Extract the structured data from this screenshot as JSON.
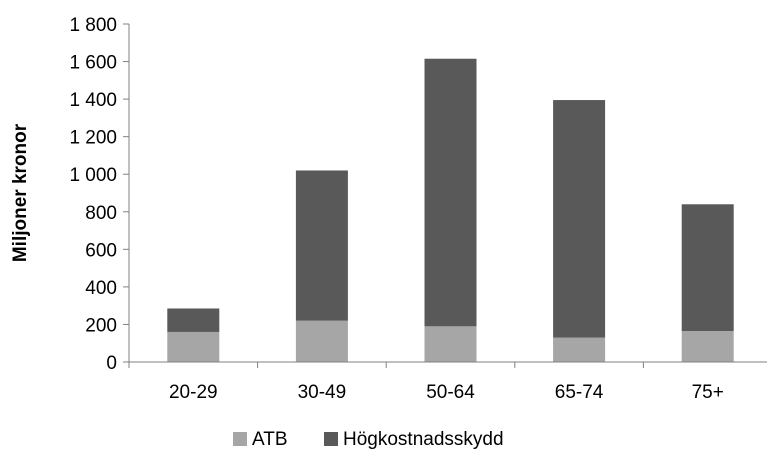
{
  "chart_data": {
    "type": "bar",
    "stacked": true,
    "categories": [
      "20-29",
      "30-49",
      "50-64",
      "65-74",
      "75+"
    ],
    "series": [
      {
        "name": "ATB",
        "values": [
          160,
          220,
          190,
          130,
          165
        ],
        "color": "#a6a6a6"
      },
      {
        "name": "Högkostnadsskydd",
        "values": [
          125,
          800,
          1425,
          1265,
          675
        ],
        "color": "#595959"
      }
    ],
    "ylabel": "Miljoner kronor",
    "xlabel": "",
    "ylim": [
      0,
      1800
    ],
    "yticks": [
      0,
      200,
      400,
      600,
      800,
      1000,
      1200,
      1400,
      1600,
      1800
    ],
    "ytick_labels": [
      "0",
      "200",
      "400",
      "600",
      "800",
      "1 000",
      "1 200",
      "1 400",
      "1 600",
      "1 800"
    ],
    "grid": false,
    "legend": "bottom"
  }
}
